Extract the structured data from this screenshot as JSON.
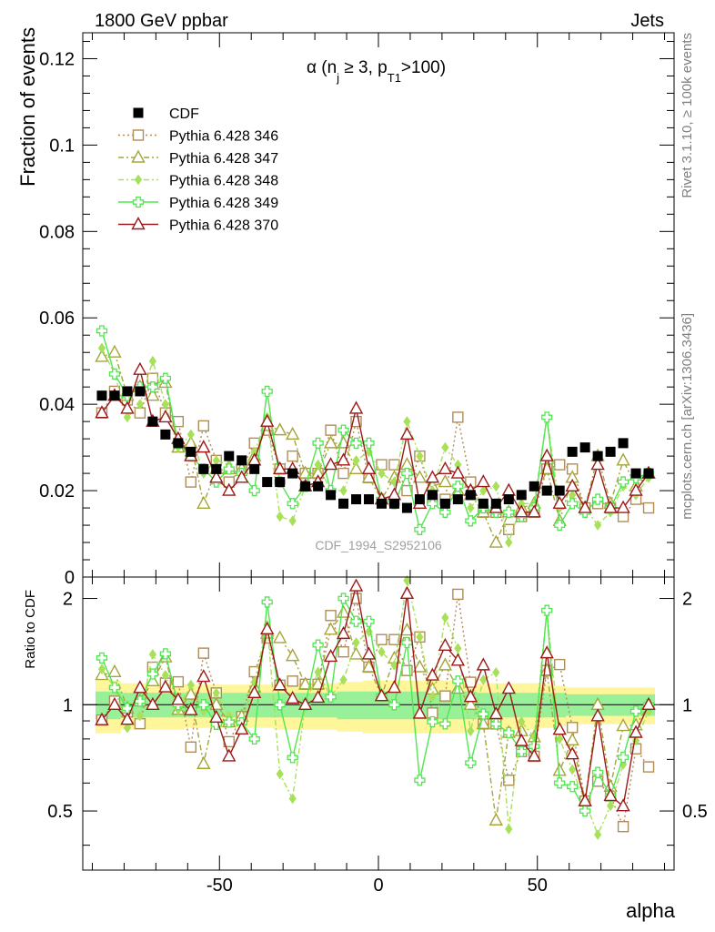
{
  "header": {
    "left": "1800 GeV ppbar",
    "right": "Jets",
    "side_top": "Rivet 3.1.10, ≥ 100k events",
    "side_bottom": "mcplots.cern.ch [arXiv:1306.3436]"
  },
  "chart_data": {
    "type": "line",
    "title_parts": [
      "α (n",
      "j",
      " ≥ 3, p",
      "T1",
      ">100)"
    ],
    "watermark": "CDF_1994_S2952106",
    "xlabel": "alpha",
    "ylabel_main": "Fraction of events",
    "ylabel_ratio": "Ratio to CDF",
    "xlim": [
      -93,
      93
    ],
    "ylim_main": [
      0,
      0.126
    ],
    "ylim_ratio": [
      0.34,
      2.3
    ],
    "x_ticks": [
      -50,
      0,
      50
    ],
    "y_ticks_main": [
      0,
      0.02,
      0.04,
      0.06,
      0.08,
      0.1,
      0.12
    ],
    "y_tick_labels_main": [
      "0",
      "0.02",
      "0.04",
      "0.06",
      "0.08",
      "0.1",
      "0.12"
    ],
    "y_ticks_ratio": [
      0.5,
      1,
      2
    ],
    "legend_position": "top-left",
    "x": [
      -87,
      -83,
      -79,
      -75,
      -71,
      -67,
      -63,
      -59,
      -55,
      -51,
      -47,
      -43,
      -39,
      -35,
      -31,
      -27,
      -23,
      -19,
      -15,
      -11,
      -7,
      -3,
      1,
      5,
      9,
      13,
      17,
      21,
      25,
      29,
      33,
      37,
      41,
      45,
      49,
      53,
      57,
      61,
      65,
      69,
      73,
      77,
      81,
      85
    ],
    "data": {
      "name": "CDF",
      "color": "#000000",
      "values": [
        0.042,
        0.042,
        0.043,
        0.043,
        0.036,
        0.033,
        0.031,
        0.029,
        0.025,
        0.025,
        0.028,
        0.027,
        0.025,
        0.022,
        0.022,
        0.024,
        0.021,
        0.021,
        0.019,
        0.017,
        0.018,
        0.018,
        0.017,
        0.017,
        0.016,
        0.018,
        0.019,
        0.017,
        0.018,
        0.019,
        0.017,
        0.017,
        0.018,
        0.019,
        0.021,
        0.02,
        0.02,
        0.029,
        0.03,
        0.028,
        0.029,
        0.031,
        0.024,
        0.024
      ]
    },
    "ratio_band": {
      "inner": [
        0.09,
        0.09,
        0.08,
        0.08,
        0.08,
        0.08,
        0.08,
        0.08,
        0.08,
        0.08,
        0.08,
        0.08,
        0.08,
        0.08,
        0.08,
        0.08,
        0.08,
        0.08,
        0.08,
        0.09,
        0.09,
        0.09,
        0.09,
        0.09,
        0.09,
        0.09,
        0.09,
        0.09,
        0.09,
        0.09,
        0.08,
        0.08,
        0.08,
        0.08,
        0.08,
        0.08,
        0.08,
        0.07,
        0.07,
        0.07,
        0.07,
        0.07,
        0.07,
        0.07
      ],
      "outer": [
        0.17,
        0.17,
        0.15,
        0.15,
        0.15,
        0.15,
        0.15,
        0.14,
        0.14,
        0.14,
        0.14,
        0.14,
        0.14,
        0.14,
        0.15,
        0.15,
        0.15,
        0.15,
        0.15,
        0.16,
        0.16,
        0.17,
        0.17,
        0.17,
        0.17,
        0.17,
        0.17,
        0.17,
        0.17,
        0.16,
        0.15,
        0.15,
        0.15,
        0.15,
        0.15,
        0.14,
        0.13,
        0.12,
        0.12,
        0.12,
        0.12,
        0.12,
        0.12,
        0.12
      ]
    },
    "series": [
      {
        "name": "Pythia 6.428 346",
        "color": "#b08d57",
        "marker": "square",
        "dash": "2,3",
        "values": [
          0.038,
          0.043,
          0.041,
          0.038,
          0.046,
          0.038,
          0.036,
          0.022,
          0.035,
          0.027,
          0.022,
          0.025,
          0.031,
          0.034,
          0.025,
          0.028,
          0.024,
          0.024,
          0.034,
          0.024,
          0.036,
          0.023,
          0.026,
          0.026,
          0.02,
          0.028,
          0.018,
          0.018,
          0.037,
          0.022,
          0.015,
          0.015,
          0.011,
          0.014,
          0.015,
          0.025,
          0.026,
          0.025,
          0.016,
          0.017,
          0.016,
          0.014,
          0.018,
          0.016
        ]
      },
      {
        "name": "Pythia 6.428 347",
        "color": "#a5a53a",
        "marker": "triangle",
        "dash": "6,3,2,3",
        "values": [
          0.051,
          0.052,
          0.042,
          0.044,
          0.042,
          0.045,
          0.03,
          0.031,
          0.017,
          0.025,
          0.025,
          0.025,
          0.028,
          0.035,
          0.034,
          0.033,
          0.024,
          0.024,
          0.031,
          0.031,
          0.025,
          0.023,
          0.018,
          0.023,
          0.026,
          0.023,
          0.021,
          0.022,
          0.02,
          0.019,
          0.015,
          0.008,
          0.015,
          0.016,
          0.017,
          0.025,
          0.013,
          0.023,
          0.016,
          0.028,
          0.017,
          0.027,
          0.021,
          0.024
        ]
      },
      {
        "name": "Pythia 6.428 348",
        "color": "#a8e05a",
        "marker": "diamond",
        "dash": "6,3,2,3",
        "values": [
          0.053,
          0.047,
          0.037,
          0.04,
          0.05,
          0.04,
          0.03,
          0.033,
          0.024,
          0.027,
          0.026,
          0.024,
          0.029,
          0.037,
          0.014,
          0.013,
          0.021,
          0.026,
          0.02,
          0.02,
          0.027,
          0.029,
          0.024,
          0.022,
          0.036,
          0.028,
          0.02,
          0.03,
          0.026,
          0.016,
          0.02,
          0.021,
          0.008,
          0.017,
          0.017,
          0.037,
          0.016,
          0.019,
          0.016,
          0.012,
          0.015,
          0.021,
          0.019,
          0.023
        ]
      },
      {
        "name": "Pythia 6.428 349",
        "color": "#4de84d",
        "marker": "cross",
        "dash": "",
        "values": [
          0.057,
          0.047,
          0.042,
          0.044,
          0.044,
          0.046,
          0.031,
          0.028,
          0.025,
          0.022,
          0.025,
          0.024,
          0.02,
          0.043,
          0.022,
          0.017,
          0.021,
          0.031,
          0.02,
          0.034,
          0.031,
          0.031,
          0.018,
          0.017,
          0.024,
          0.011,
          0.017,
          0.015,
          0.021,
          0.013,
          0.016,
          0.015,
          0.015,
          0.014,
          0.016,
          0.037,
          0.012,
          0.017,
          0.015,
          0.018,
          0.016,
          0.022,
          0.023,
          0.024
        ]
      },
      {
        "name": "Pythia 6.428 370",
        "color": "#9c1a1a",
        "marker": "triangle",
        "dash": "",
        "values": [
          0.038,
          0.042,
          0.039,
          0.048,
          0.036,
          0.037,
          0.032,
          0.028,
          0.03,
          0.023,
          0.02,
          0.023,
          0.027,
          0.036,
          0.025,
          0.025,
          0.021,
          0.022,
          0.026,
          0.027,
          0.039,
          0.025,
          0.018,
          0.019,
          0.033,
          0.017,
          0.023,
          0.025,
          0.024,
          0.02,
          0.022,
          0.016,
          0.02,
          0.015,
          0.015,
          0.028,
          0.017,
          0.021,
          0.016,
          0.026,
          0.016,
          0.016,
          0.02,
          0.024
        ]
      }
    ]
  }
}
